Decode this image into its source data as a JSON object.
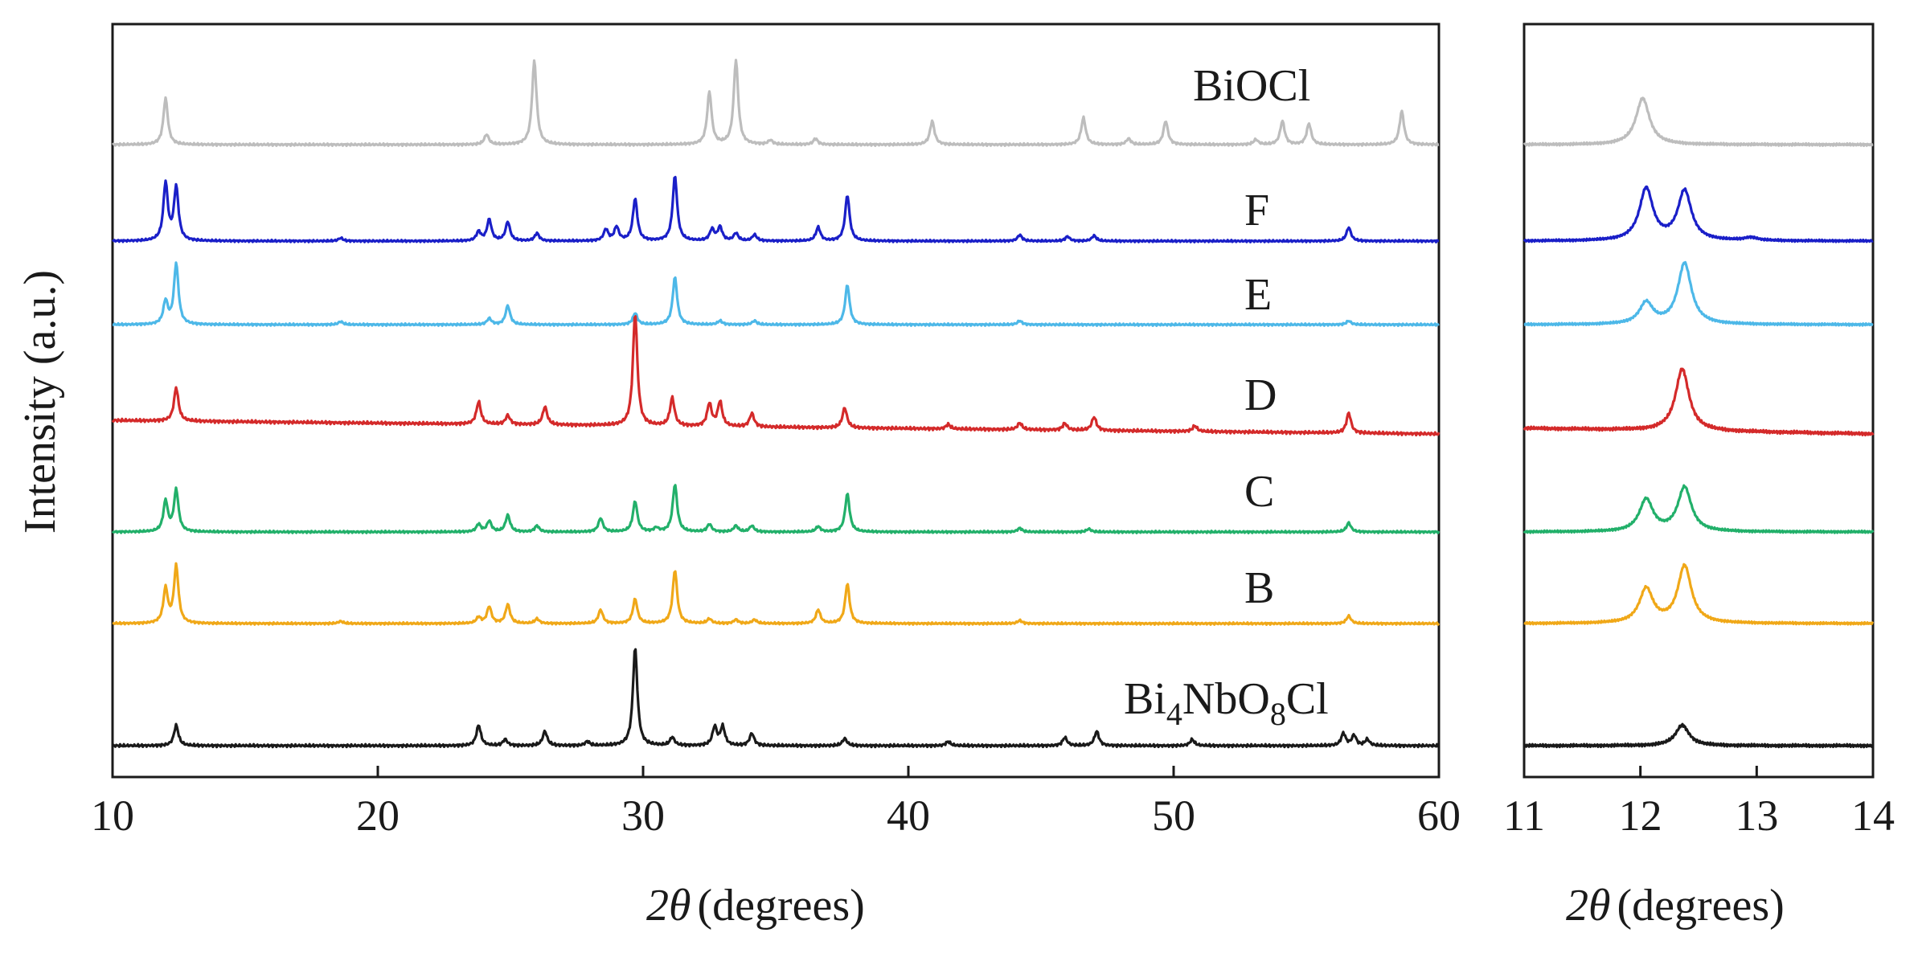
{
  "chart_data": [
    {
      "type": "line",
      "panel": "main",
      "xlabel_symbol": "2θ",
      "xlabel_unit": "(degrees)",
      "ylabel": "Intensity (a.u.)",
      "xlim": [
        10,
        60
      ],
      "xticks": [
        "10",
        "20",
        "30",
        "40",
        "50",
        "60"
      ],
      "y_ticks_shown": false,
      "series": [
        {
          "name": "BiOCl",
          "label_main": "BiOCl",
          "label_sub": "",
          "label_tail": "",
          "color": "#bdbdbd",
          "offset": 6,
          "baseline_shift": 0,
          "peaks": [
            [
              12.0,
              0.55
            ],
            [
              24.1,
              0.12
            ],
            [
              25.9,
              1.0
            ],
            [
              32.5,
              0.62
            ],
            [
              33.5,
              1.0
            ],
            [
              34.8,
              0.05
            ],
            [
              36.5,
              0.07
            ],
            [
              40.9,
              0.28
            ],
            [
              46.6,
              0.32
            ],
            [
              48.3,
              0.07
            ],
            [
              49.7,
              0.28
            ],
            [
              53.1,
              0.06
            ],
            [
              54.1,
              0.28
            ],
            [
              55.1,
              0.25
            ],
            [
              58.6,
              0.4
            ]
          ]
        },
        {
          "name": "F",
          "label_main": "F",
          "label_sub": "",
          "label_tail": "",
          "color": "#1a1fc8",
          "offset": 5,
          "baseline_shift": 0,
          "peaks": [
            [
              12.0,
              0.75
            ],
            [
              12.4,
              0.7
            ],
            [
              18.6,
              0.04
            ],
            [
              23.8,
              0.12
            ],
            [
              24.2,
              0.28
            ],
            [
              24.9,
              0.25
            ],
            [
              26.0,
              0.1
            ],
            [
              28.6,
              0.15
            ],
            [
              29.0,
              0.18
            ],
            [
              29.7,
              0.55
            ],
            [
              31.2,
              0.85
            ],
            [
              32.6,
              0.15
            ],
            [
              32.9,
              0.18
            ],
            [
              33.5,
              0.1
            ],
            [
              34.2,
              0.08
            ],
            [
              36.6,
              0.18
            ],
            [
              37.7,
              0.6
            ],
            [
              44.2,
              0.08
            ],
            [
              46.0,
              0.06
            ],
            [
              47.0,
              0.07
            ],
            [
              56.6,
              0.18
            ]
          ]
        },
        {
          "name": "E",
          "label_main": "E",
          "label_sub": "",
          "label_tail": "",
          "color": "#4db8e8",
          "offset": 4,
          "baseline_shift": 0,
          "peaks": [
            [
              12.0,
              0.3
            ],
            [
              12.4,
              0.8
            ],
            [
              18.6,
              0.04
            ],
            [
              24.2,
              0.08
            ],
            [
              24.9,
              0.25
            ],
            [
              29.7,
              0.15
            ],
            [
              31.2,
              0.62
            ],
            [
              32.9,
              0.05
            ],
            [
              34.2,
              0.05
            ],
            [
              37.7,
              0.52
            ],
            [
              44.2,
              0.05
            ],
            [
              56.6,
              0.05
            ]
          ]
        },
        {
          "name": "D",
          "label_main": "D",
          "label_sub": "",
          "label_tail": "",
          "color": "#d42a2a",
          "offset": 3,
          "baseline_shift": 0.12,
          "peaks": [
            [
              12.4,
              0.3
            ],
            [
              23.8,
              0.2
            ],
            [
              24.9,
              0.08
            ],
            [
              26.3,
              0.16
            ],
            [
              29.7,
              1.0
            ],
            [
              31.1,
              0.25
            ],
            [
              32.5,
              0.2
            ],
            [
              32.9,
              0.22
            ],
            [
              34.1,
              0.12
            ],
            [
              37.6,
              0.18
            ],
            [
              41.5,
              0.04
            ],
            [
              44.2,
              0.06
            ],
            [
              45.9,
              0.06
            ],
            [
              47.0,
              0.12
            ],
            [
              50.8,
              0.05
            ],
            [
              56.6,
              0.18
            ]
          ]
        },
        {
          "name": "C",
          "label_main": "C",
          "label_sub": "",
          "label_tail": "",
          "color": "#22b06a",
          "offset": 2,
          "baseline_shift": 0,
          "peaks": [
            [
              12.0,
              0.4
            ],
            [
              12.4,
              0.55
            ],
            [
              23.8,
              0.1
            ],
            [
              24.2,
              0.14
            ],
            [
              24.9,
              0.22
            ],
            [
              26.0,
              0.08
            ],
            [
              28.4,
              0.18
            ],
            [
              29.7,
              0.4
            ],
            [
              30.5,
              0.05
            ],
            [
              31.2,
              0.62
            ],
            [
              32.5,
              0.1
            ],
            [
              33.5,
              0.08
            ],
            [
              34.1,
              0.08
            ],
            [
              36.6,
              0.07
            ],
            [
              37.7,
              0.5
            ],
            [
              44.2,
              0.05
            ],
            [
              46.8,
              0.04
            ],
            [
              56.6,
              0.12
            ]
          ]
        },
        {
          "name": "B",
          "label_main": "B",
          "label_sub": "",
          "label_tail": "",
          "color": "#f0a818",
          "offset": 1,
          "baseline_shift": 0,
          "peaks": [
            [
              12.0,
              0.45
            ],
            [
              12.4,
              0.75
            ],
            [
              18.6,
              0.03
            ],
            [
              23.8,
              0.08
            ],
            [
              24.2,
              0.22
            ],
            [
              24.9,
              0.25
            ],
            [
              26.0,
              0.06
            ],
            [
              28.4,
              0.18
            ],
            [
              29.7,
              0.32
            ],
            [
              31.2,
              0.7
            ],
            [
              32.5,
              0.06
            ],
            [
              33.5,
              0.05
            ],
            [
              34.2,
              0.05
            ],
            [
              36.6,
              0.18
            ],
            [
              37.7,
              0.52
            ],
            [
              44.2,
              0.04
            ],
            [
              56.6,
              0.1
            ]
          ]
        },
        {
          "name": "Bi4NbO8Cl",
          "label_main": "Bi",
          "label_sub": "4",
          "label_tail": "NbO",
          "label_sub2": "8",
          "label_tail2": "Cl",
          "color": "#1a1a1a",
          "offset": 0,
          "baseline_shift": 0,
          "peaks": [
            [
              12.4,
              0.2
            ],
            [
              23.8,
              0.2
            ],
            [
              24.8,
              0.06
            ],
            [
              26.3,
              0.14
            ],
            [
              27.9,
              0.04
            ],
            [
              29.7,
              0.95
            ],
            [
              31.1,
              0.08
            ],
            [
              32.7,
              0.18
            ],
            [
              33.0,
              0.18
            ],
            [
              34.1,
              0.12
            ],
            [
              37.6,
              0.07
            ],
            [
              41.5,
              0.04
            ],
            [
              45.9,
              0.08
            ],
            [
              47.1,
              0.14
            ],
            [
              50.7,
              0.06
            ],
            [
              56.4,
              0.12
            ],
            [
              56.8,
              0.1
            ],
            [
              57.3,
              0.06
            ]
          ]
        }
      ]
    },
    {
      "type": "line",
      "panel": "inset",
      "xlabel_symbol": "2θ",
      "xlabel_unit": "(degrees)",
      "xlim": [
        11,
        14
      ],
      "xticks": [
        "11",
        "12",
        "13",
        "14"
      ],
      "series": [
        {
          "name": "BiOCl",
          "color": "#bdbdbd",
          "offset": 6,
          "baseline_shift": 0,
          "peaks": [
            [
              12.02,
              0.55
            ]
          ]
        },
        {
          "name": "F",
          "color": "#1a1fc8",
          "offset": 5,
          "baseline_shift": 0,
          "peaks": [
            [
              12.05,
              0.68
            ],
            [
              12.38,
              0.65
            ],
            [
              12.95,
              0.04
            ]
          ]
        },
        {
          "name": "E",
          "color": "#4db8e8",
          "offset": 4,
          "baseline_shift": 0,
          "peaks": [
            [
              12.05,
              0.28
            ],
            [
              12.38,
              0.8
            ]
          ]
        },
        {
          "name": "D",
          "color": "#d42a2a",
          "offset": 3,
          "baseline_shift": 0.05,
          "peaks": [
            [
              12.36,
              0.55
            ]
          ]
        },
        {
          "name": "C",
          "color": "#22b06a",
          "offset": 2,
          "baseline_shift": 0,
          "peaks": [
            [
              12.05,
              0.42
            ],
            [
              12.38,
              0.58
            ]
          ]
        },
        {
          "name": "B",
          "color": "#f0a818",
          "offset": 1,
          "baseline_shift": 0,
          "peaks": [
            [
              12.05,
              0.45
            ],
            [
              12.38,
              0.75
            ]
          ]
        },
        {
          "name": "Bi4NbO8Cl",
          "color": "#1a1a1a",
          "offset": 0,
          "baseline_shift": 0,
          "peaks": [
            [
              12.36,
              0.2
            ]
          ]
        }
      ]
    }
  ]
}
